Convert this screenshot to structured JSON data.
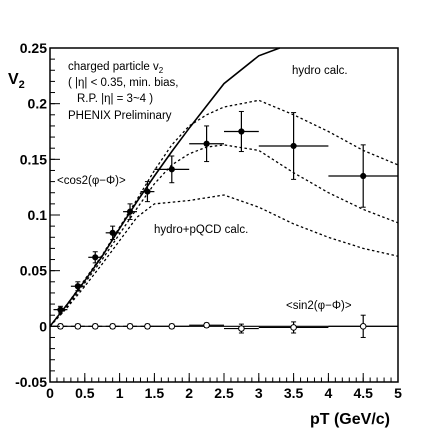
{
  "chart_data": {
    "type": "scatter",
    "xlabel": "pT (GeV/c)",
    "ylabel": "V",
    "ylabel_sub": "2",
    "xlim": [
      0,
      5
    ],
    "ylim": [
      -0.05,
      0.25
    ],
    "x_ticks": [
      0,
      0.5,
      1,
      1.5,
      2,
      2.5,
      3,
      3.5,
      4,
      4.5,
      5
    ],
    "x_tick_labels": [
      "0",
      "0.5",
      "1",
      "1.5",
      "2",
      "2.5",
      "3",
      "3.5",
      "4",
      "4.5",
      "5"
    ],
    "y_ticks": [
      -0.05,
      0,
      0.05,
      0.1,
      0.15,
      0.2,
      0.25
    ],
    "y_tick_labels": [
      "-0.05",
      "0",
      "0.05",
      "0.1",
      "0.15",
      "0.2",
      "0.25"
    ],
    "annotations": {
      "info_line1": "charged particle v",
      "info_line1_sub": "2",
      "info_line2": "( |η| < 0.35,  min. bias,",
      "info_line3": "R.P. |η| = 3~4 )",
      "info_line4": "PHENIX Preliminary",
      "hydro_label": "hydro calc.",
      "hydro_pqcd_label": "hydro+pQCD calc.",
      "cos_label": "<cos2(φ−Φ)>",
      "sin_label": "<sin2(φ−Φ)>"
    },
    "series": [
      {
        "marker": "filled-circle",
        "points": [
          {
            "x": 0.15,
            "y": 0.015,
            "xerr": 0.1,
            "yerr": 0.003
          },
          {
            "x": 0.4,
            "y": 0.036,
            "xerr": 0.1,
            "yerr": 0.004
          },
          {
            "x": 0.65,
            "y": 0.062,
            "xerr": 0.1,
            "yerr": 0.005
          },
          {
            "x": 0.9,
            "y": 0.084,
            "xerr": 0.1,
            "yerr": 0.006
          },
          {
            "x": 1.15,
            "y": 0.103,
            "xerr": 0.1,
            "yerr": 0.007
          },
          {
            "x": 1.4,
            "y": 0.121,
            "xerr": 0.1,
            "yerr": 0.009
          },
          {
            "x": 1.75,
            "y": 0.141,
            "xerr": 0.25,
            "yerr": 0.012
          },
          {
            "x": 2.25,
            "y": 0.164,
            "xerr": 0.25,
            "yerr": 0.016
          },
          {
            "x": 2.75,
            "y": 0.175,
            "xerr": 0.25,
            "yerr": 0.018
          },
          {
            "x": 3.5,
            "y": 0.162,
            "xerr": 0.5,
            "yerr": 0.03
          },
          {
            "x": 4.5,
            "y": 0.135,
            "xerr": 0.5,
            "yerr": 0.028
          }
        ]
      },
      {
        "marker": "open-circle",
        "points": [
          {
            "x": 0.15,
            "y": 0.0,
            "xerr": 0.1,
            "yerr": 0.002
          },
          {
            "x": 0.4,
            "y": 0.0,
            "xerr": 0.1,
            "yerr": 0.002
          },
          {
            "x": 0.65,
            "y": 0.0,
            "xerr": 0.1,
            "yerr": 0.002
          },
          {
            "x": 0.9,
            "y": 0.0,
            "xerr": 0.1,
            "yerr": 0.002
          },
          {
            "x": 1.15,
            "y": 0.0,
            "xerr": 0.1,
            "yerr": 0.002
          },
          {
            "x": 1.4,
            "y": 0.0,
            "xerr": 0.1,
            "yerr": 0.002
          },
          {
            "x": 1.75,
            "y": 0.0,
            "xerr": 0.25,
            "yerr": 0.002
          },
          {
            "x": 2.25,
            "y": 0.001,
            "xerr": 0.25,
            "yerr": 0.002
          },
          {
            "x": 2.75,
            "y": -0.002,
            "xerr": 0.25,
            "yerr": 0.004
          },
          {
            "x": 3.5,
            "y": -0.001,
            "xerr": 0.5,
            "yerr": 0.005
          },
          {
            "x": 4.5,
            "y": 0.0,
            "xerr": 0.5,
            "yerr": 0.01
          }
        ]
      }
    ],
    "curves": [
      {
        "style": "solid",
        "points": [
          [
            0,
            0
          ],
          [
            0.25,
            0.02
          ],
          [
            0.5,
            0.041
          ],
          [
            0.75,
            0.063
          ],
          [
            1.0,
            0.088
          ],
          [
            1.25,
            0.112
          ],
          [
            1.5,
            0.135
          ],
          [
            1.75,
            0.157
          ],
          [
            2.0,
            0.178
          ],
          [
            2.25,
            0.198
          ],
          [
            2.5,
            0.218
          ],
          [
            3.0,
            0.243
          ],
          [
            3.3,
            0.25
          ]
        ]
      },
      {
        "style": "dotted",
        "points": [
          [
            0,
            0
          ],
          [
            0.25,
            0.02
          ],
          [
            0.5,
            0.042
          ],
          [
            0.75,
            0.064
          ],
          [
            1.0,
            0.089
          ],
          [
            1.25,
            0.114
          ],
          [
            1.5,
            0.14
          ],
          [
            1.75,
            0.163
          ],
          [
            2.0,
            0.18
          ],
          [
            2.25,
            0.19
          ],
          [
            2.5,
            0.197
          ],
          [
            2.75,
            0.2
          ],
          [
            3.0,
            0.203
          ],
          [
            3.5,
            0.19
          ],
          [
            4.0,
            0.175
          ],
          [
            4.5,
            0.158
          ],
          [
            5.0,
            0.145
          ]
        ]
      },
      {
        "style": "dotted",
        "points": [
          [
            0,
            0
          ],
          [
            0.25,
            0.018
          ],
          [
            0.5,
            0.039
          ],
          [
            0.75,
            0.06
          ],
          [
            1.0,
            0.083
          ],
          [
            1.25,
            0.106
          ],
          [
            1.5,
            0.128
          ],
          [
            1.75,
            0.145
          ],
          [
            2.0,
            0.155
          ],
          [
            2.25,
            0.161
          ],
          [
            2.5,
            0.163
          ],
          [
            3.0,
            0.158
          ],
          [
            3.5,
            0.138
          ],
          [
            4.0,
            0.12
          ],
          [
            4.5,
            0.105
          ],
          [
            5.0,
            0.093
          ]
        ]
      },
      {
        "style": "dotted",
        "points": [
          [
            0,
            0
          ],
          [
            0.25,
            0.017
          ],
          [
            0.5,
            0.036
          ],
          [
            0.75,
            0.056
          ],
          [
            1.0,
            0.077
          ],
          [
            1.25,
            0.098
          ],
          [
            1.5,
            0.11
          ],
          [
            2.0,
            0.113
          ],
          [
            2.5,
            0.118
          ],
          [
            3.0,
            0.107
          ],
          [
            3.5,
            0.092
          ],
          [
            4.0,
            0.08
          ],
          [
            4.5,
            0.07
          ],
          [
            5.0,
            0.063
          ]
        ]
      }
    ]
  }
}
